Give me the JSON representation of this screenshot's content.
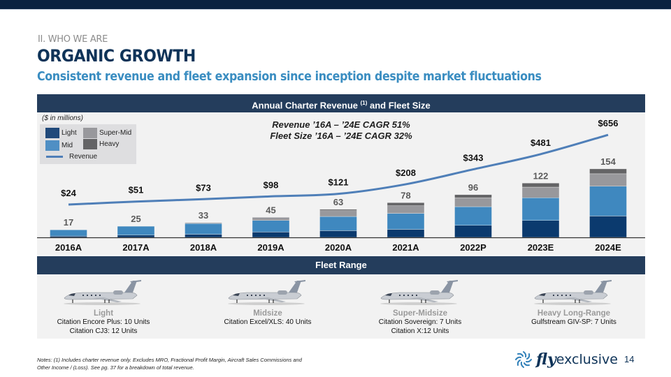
{
  "header": {
    "section_label": "II. WHO WE ARE",
    "title": "ORGANIC GROWTH",
    "subtitle": "Consistent revenue and fleet expansion since inception despite market fluctuations"
  },
  "chart_section": {
    "title_pre": "Annual Charter Revenue",
    "title_sup": "(1)",
    "title_post": "and Fleet Size",
    "units_note": "($ in millions)",
    "cagr_revenue": "Revenue ’16A – ’24E CAGR 51%",
    "cagr_fleet": "Fleet Size ’16A – ’24E CAGR 32%"
  },
  "legend": {
    "light": "Light",
    "super_mid": "Super-Mid",
    "mid": "Mid",
    "heavy": "Heavy",
    "revenue": "Revenue"
  },
  "colors": {
    "light": "#0b3a6e",
    "mid": "#3f88bf",
    "super_mid": "#98989c",
    "heavy": "#646466",
    "revenue_line": "#4f7fb8",
    "header_bar": "#243d5c",
    "title": "#0e3358",
    "subtitle": "#3a8dc1"
  },
  "chart_data": {
    "type": "bar",
    "title": "Annual Charter Revenue (1) and Fleet Size",
    "xlabel": "",
    "ylabel": "",
    "categories": [
      "2016A",
      "2017A",
      "2018A",
      "2019A",
      "2020A",
      "2021A",
      "2022P",
      "2023E",
      "2024E"
    ],
    "series": [
      {
        "name": "Light",
        "kind": "stacked-bar",
        "values": [
          3,
          5,
          7,
          12,
          15,
          18,
          27,
          38,
          48
        ]
      },
      {
        "name": "Mid",
        "kind": "stacked-bar",
        "values": [
          14,
          20,
          24,
          26,
          32,
          36,
          42,
          51,
          67
        ]
      },
      {
        "name": "Super-Mid",
        "kind": "stacked-bar",
        "values": [
          0,
          0,
          2,
          7,
          13,
          17,
          20,
          24,
          28
        ]
      },
      {
        "name": "Heavy",
        "kind": "stacked-bar",
        "values": [
          0,
          0,
          0,
          0,
          3,
          7,
          7,
          9,
          11
        ]
      },
      {
        "name": "Revenue",
        "kind": "line",
        "values": [
          24,
          51,
          73,
          98,
          121,
          208,
          343,
          481,
          656
        ]
      }
    ],
    "fleet_totals": [
      17,
      25,
      33,
      45,
      63,
      78,
      96,
      122,
      154
    ],
    "fleet_labels": [
      "17",
      "25",
      "33",
      "45",
      "63",
      "78",
      "96",
      "122",
      "154"
    ],
    "revenue_labels": [
      "$24",
      "$51",
      "$73",
      "$98",
      "$121",
      "$208",
      "$343",
      "$481",
      "$656"
    ],
    "units": "$ in millions",
    "annotations": [
      "Revenue ’16A – ’24E CAGR 51%",
      "Fleet Size ’16A – ’24E CAGR 32%"
    ],
    "legend_position": "top-left",
    "grid": false
  },
  "fleet_range": {
    "title": "Fleet Range",
    "categories": [
      {
        "name": "Light",
        "lines": [
          "Citation Encore Plus: 10 Units",
          "Citation CJ3: 12 Units"
        ]
      },
      {
        "name": "Midsize",
        "lines": [
          "Citation Excel/XLS: 40 Units"
        ]
      },
      {
        "name": "Super-Midsize",
        "lines": [
          "Citation Sovereign: 7 Units",
          "Citation X:12 Units"
        ]
      },
      {
        "name": "Heavy Long-Range",
        "lines": [
          "Gulfstream GIV-SP: 7 Units"
        ]
      }
    ]
  },
  "footer": {
    "notes_line1": "Notes: (1) Includes charter revenue only. Excludes MRO, Fractional Profit Margin, Aircraft Sales Commissions and",
    "notes_line2": "Other Income / (Loss). See pg. 37 for a breakdown of total revenue.",
    "logo_fly": "fly",
    "logo_exclusive": "exclusive",
    "page_number": "14"
  }
}
